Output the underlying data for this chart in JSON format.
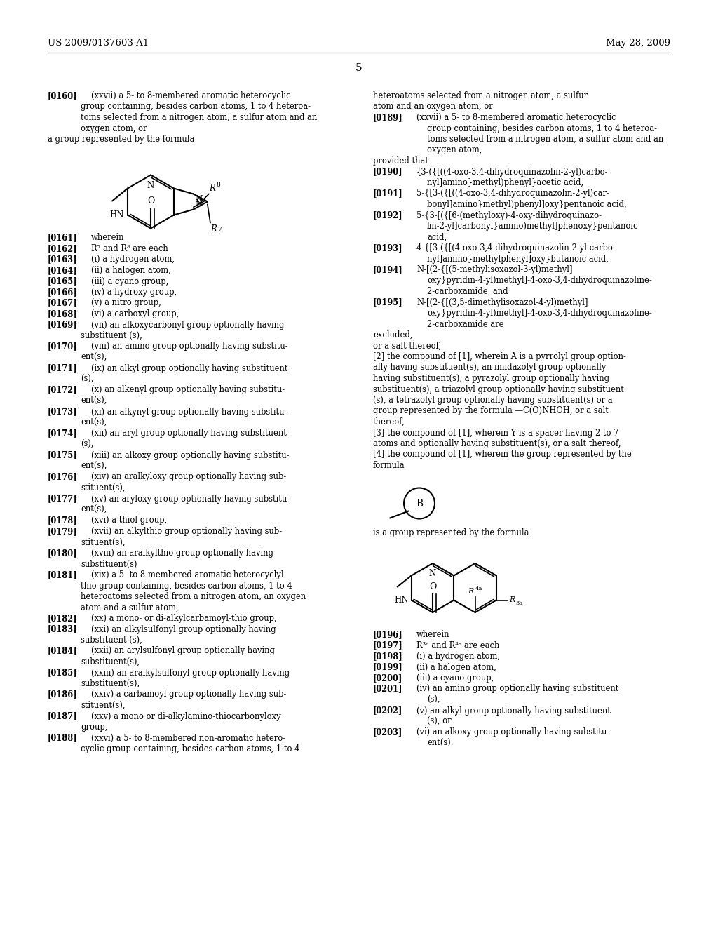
{
  "header_left": "US 2009/0137603 A1",
  "header_right": "May 28, 2009",
  "page_number": "5",
  "bg_color": "#ffffff"
}
